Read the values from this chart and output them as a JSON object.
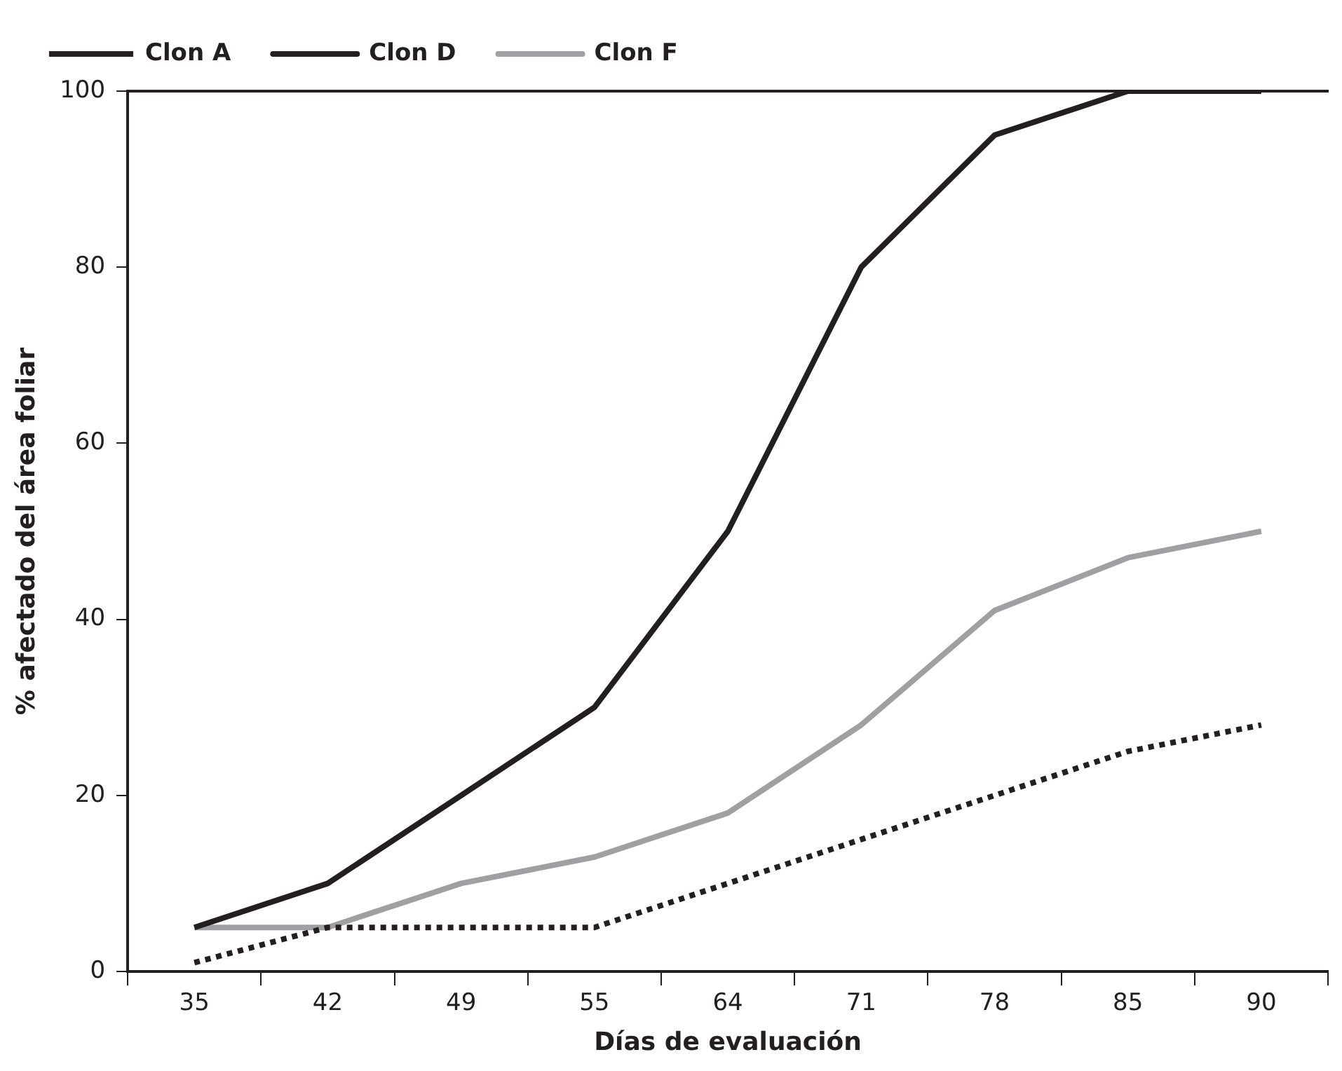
{
  "chart_data": {
    "type": "line",
    "xlabel": "Días de evaluación",
    "ylabel": "% afectado del área foliar",
    "categories": [
      "35",
      "42",
      "49",
      "55",
      "64",
      "71",
      "78",
      "85",
      "90"
    ],
    "series": [
      {
        "name": "Clon A",
        "color": "#231f20",
        "line_style": "dotted",
        "values": [
          1,
          5,
          5,
          5,
          10,
          15,
          20,
          25,
          28
        ]
      },
      {
        "name": "Clon D",
        "color": "#231f20",
        "line_style": "solid",
        "values": [
          5,
          10,
          20,
          30,
          50,
          80,
          95,
          100,
          100
        ]
      },
      {
        "name": "Clon F",
        "color": "#a0a0a3",
        "line_style": "solid",
        "values": [
          5,
          5,
          10,
          13,
          18,
          28,
          41,
          47,
          50
        ]
      }
    ],
    "ylim": [
      0,
      100
    ],
    "yticks": [
      0,
      20,
      40,
      60,
      80,
      100
    ],
    "grid": false,
    "legend": "top left",
    "marker": "none"
  }
}
